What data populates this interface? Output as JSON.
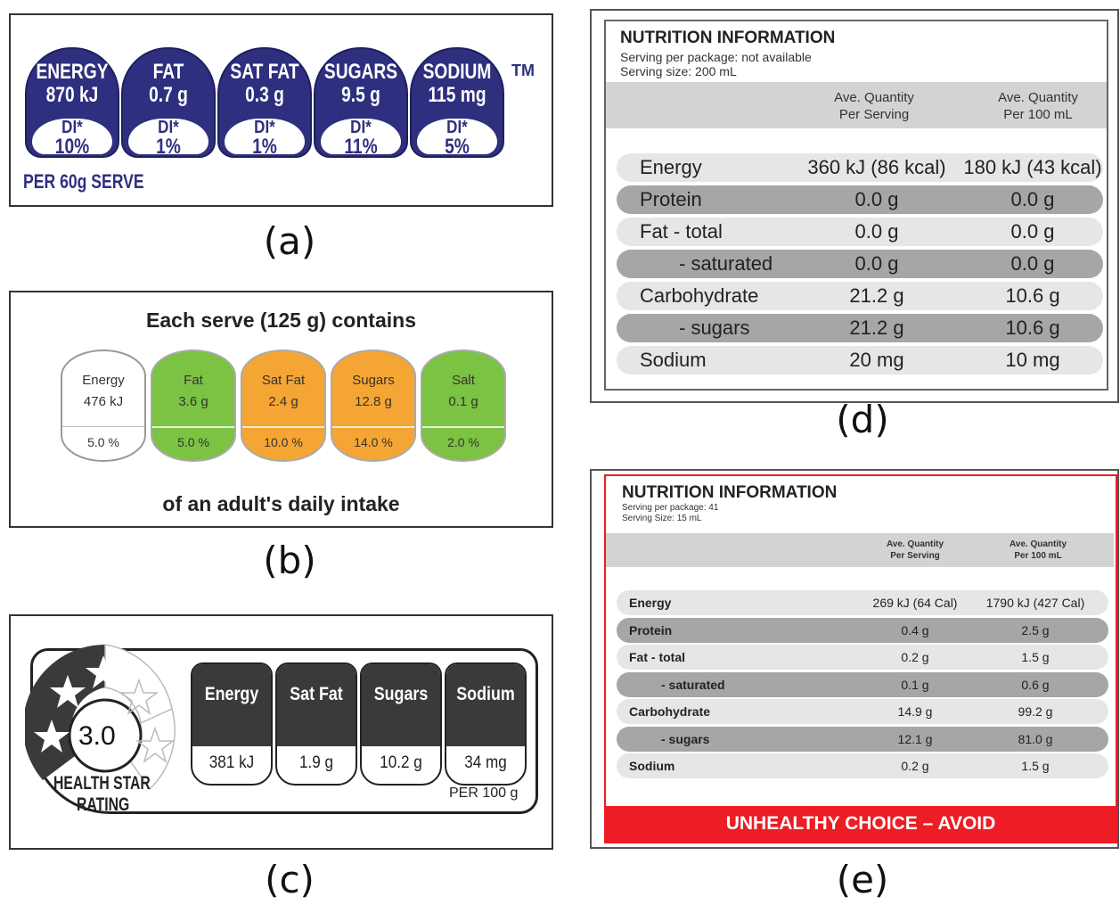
{
  "panel_a": {
    "caption": "(a)",
    "badges": [
      {
        "name": "ENERGY",
        "value": "870 kJ",
        "di_label": "DI*",
        "di_pct": "10%"
      },
      {
        "name": "FAT",
        "value": "0.7 g",
        "di_label": "DI*",
        "di_pct": "1%"
      },
      {
        "name": "SAT FAT",
        "value": "0.3 g",
        "di_label": "DI*",
        "di_pct": "1%"
      },
      {
        "name": "SUGARS",
        "value": "9.5 g",
        "di_label": "DI*",
        "di_pct": "11%"
      },
      {
        "name": "SODIUM",
        "value": "115 mg",
        "di_label": "DI*",
        "di_pct": "5%"
      }
    ],
    "tm": "TM",
    "serve": "PER 60g SERVE",
    "colors": {
      "badge": "#2e2f7f"
    }
  },
  "panel_b": {
    "caption": "(b)",
    "title": "Each serve (125 g) contains",
    "footer": "of an adult's daily intake",
    "badges": [
      {
        "name": "Energy",
        "value": "476 kJ",
        "pct": "5.0 %",
        "color": "#ffffff"
      },
      {
        "name": "Fat",
        "value": "3.6 g",
        "pct": "5.0 %",
        "color": "#7cc243"
      },
      {
        "name": "Sat Fat",
        "value": "2.4 g",
        "pct": "10.0 %",
        "color": "#f5a533"
      },
      {
        "name": "Sugars",
        "value": "12.8 g",
        "pct": "14.0 %",
        "color": "#f5a533"
      },
      {
        "name": "Salt",
        "value": "0.1 g",
        "pct": "2.0 %",
        "color": "#7cc243"
      }
    ]
  },
  "panel_c": {
    "caption": "(c)",
    "rating": "3.0",
    "rating_label_1": "HEALTH STAR",
    "rating_label_2": "RATING",
    "columns": [
      {
        "name": "Energy",
        "value": "381 kJ"
      },
      {
        "name": "Sat Fat",
        "value": "1.9 g"
      },
      {
        "name": "Sugars",
        "value": "10.2 g"
      },
      {
        "name": "Sodium",
        "value": "34 mg"
      }
    ],
    "per": "PER 100 g"
  },
  "panel_d": {
    "caption": "(d)",
    "title": "NUTRITION INFORMATION",
    "serving_per_package": "Serving per package:  not available",
    "serving_size": "Serving size:  200 mL",
    "col1": [
      "Ave. Quantity",
      "Per Serving"
    ],
    "col2": [
      "Ave. Quantity",
      "Per 100 mL"
    ],
    "rows": [
      {
        "name": "Energy",
        "serving": "360 kJ (86 kcal)",
        "per100": "180 kJ (43 kcal)",
        "dark": false
      },
      {
        "name": "Protein",
        "serving": "0.0 g",
        "per100": "0.0 g",
        "dark": true
      },
      {
        "name": "Fat - total",
        "serving": "0.0 g",
        "per100": "0.0 g",
        "dark": false
      },
      {
        "name": "- saturated",
        "serving": "0.0 g",
        "per100": "0.0 g",
        "dark": true
      },
      {
        "name": "Carbohydrate",
        "serving": "21.2 g",
        "per100": "10.6 g",
        "dark": false
      },
      {
        "name": "- sugars",
        "serving": "21.2 g",
        "per100": "10.6 g",
        "dark": true
      },
      {
        "name": "Sodium",
        "serving": "20 mg",
        "per100": "10 mg",
        "dark": false
      }
    ]
  },
  "panel_e": {
    "caption": "(e)",
    "title": "NUTRITION INFORMATION",
    "serving_per_package": "Serving per package: 41",
    "serving_size": "Serving Size: 15 mL",
    "col1": [
      "Ave. Quantity",
      "Per Serving"
    ],
    "col2": [
      "Ave. Quantity",
      "Per 100 mL"
    ],
    "rows": [
      {
        "name": "Energy",
        "serving": "269 kJ (64 Cal)",
        "per100": "1790 kJ (427 Cal)",
        "dark": false
      },
      {
        "name": "Protein",
        "serving": "0.4 g",
        "per100": "2.5 g",
        "dark": true
      },
      {
        "name": "Fat  - total",
        "serving": "0.2 g",
        "per100": "1.5 g",
        "dark": false
      },
      {
        "name": "- saturated",
        "serving": "0.1 g",
        "per100": "0.6 g",
        "dark": true
      },
      {
        "name": "Carbohydrate",
        "serving": "14.9 g",
        "per100": "99.2 g",
        "dark": false
      },
      {
        "name": "- sugars",
        "serving": "12.1 g",
        "per100": "81.0 g",
        "dark": true
      },
      {
        "name": "Sodium",
        "serving": "0.2 g",
        "per100": "1.5 g",
        "dark": false
      }
    ],
    "warning": "UNHEALTHY CHOICE – AVOID",
    "colors": {
      "warning": "#ee1c24"
    }
  }
}
